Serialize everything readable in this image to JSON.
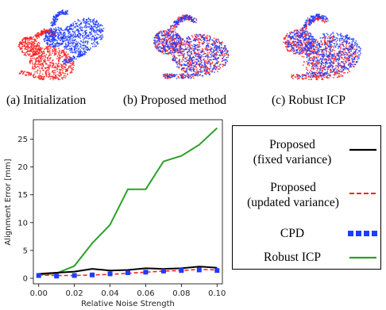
{
  "captions": {
    "a": "(a) Initialization",
    "b": "(b) Proposed method",
    "c": "(c) Robust ICP"
  },
  "colors": {
    "red": "#ff1e1e",
    "blue": "#1e3cff",
    "black": "#000000",
    "green": "#2ca02c"
  },
  "chart_data": {
    "type": "line",
    "xlabel": "Relative Noise Strength",
    "ylabel": "Alignment Error [mm]",
    "xlim": [
      -0.003,
      0.103
    ],
    "ylim": [
      -1.0,
      28.5
    ],
    "x_ticks": [
      0.0,
      0.02,
      0.04,
      0.06,
      0.08,
      0.1
    ],
    "x_tick_labels": [
      "0.00",
      "0.02",
      "0.04",
      "0.06",
      "0.08",
      "0.10"
    ],
    "y_ticks": [
      0,
      5,
      10,
      15,
      20,
      25
    ],
    "y_tick_labels": [
      "0",
      "5",
      "10",
      "15",
      "20",
      "25"
    ],
    "x": [
      0.0,
      0.01,
      0.02,
      0.03,
      0.04,
      0.05,
      0.06,
      0.07,
      0.08,
      0.09,
      0.1
    ],
    "series": [
      {
        "name": "Proposed (fixed variance)",
        "color": "#000000",
        "style": "solid",
        "values": [
          0.8,
          1.0,
          1.2,
          1.7,
          1.4,
          1.5,
          1.8,
          1.7,
          1.8,
          2.1,
          1.9
        ]
      },
      {
        "name": "Proposed (updated variance)",
        "color": "#ff1e1e",
        "style": "dashed",
        "values": [
          0.6,
          0.5,
          0.5,
          0.6,
          0.7,
          0.9,
          1.1,
          1.3,
          1.4,
          1.6,
          1.5
        ]
      },
      {
        "name": "CPD",
        "color": "#1e3cff",
        "style": "squares",
        "values": [
          0.5,
          0.4,
          0.5,
          0.6,
          0.8,
          1.0,
          1.1,
          1.3,
          1.4,
          1.5,
          1.4
        ]
      },
      {
        "name": "Robust ICP",
        "color": "#2ca02c",
        "style": "solid",
        "values": [
          0.6,
          0.9,
          2.2,
          6.3,
          9.6,
          16.0,
          16.0,
          21.0,
          22.0,
          24.0,
          27.0
        ]
      }
    ]
  },
  "legend": {
    "items": [
      {
        "line1": "Proposed",
        "line2": "(fixed variance)"
      },
      {
        "line1": "Proposed",
        "line2": "(updated variance)"
      },
      {
        "line1": "CPD"
      },
      {
        "line1": "Robust ICP"
      }
    ]
  }
}
